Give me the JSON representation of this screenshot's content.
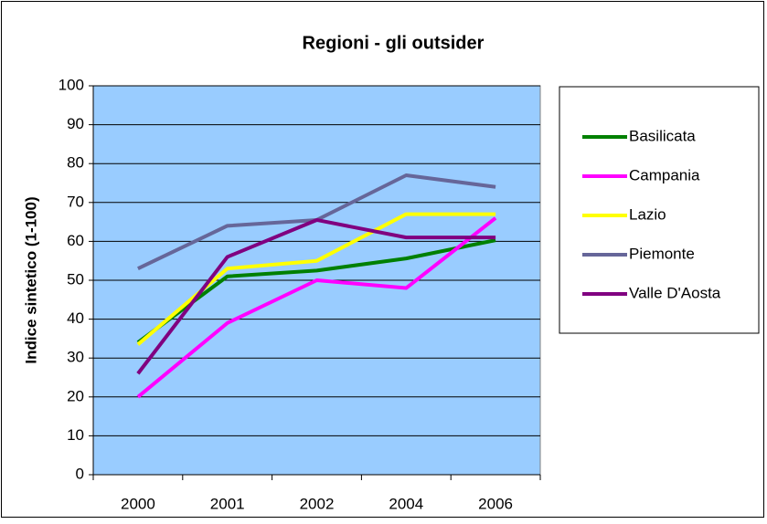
{
  "chart_data": {
    "type": "line",
    "title": "Regioni - gli outsider",
    "y_label": "Indice sintetico (1-100)",
    "categories": [
      "2000",
      "2001",
      "2002",
      "2004",
      "2006"
    ],
    "series": [
      {
        "name": "Basilicata",
        "color": "#008000",
        "values": [
          34,
          51,
          52.5,
          55.6,
          60.3
        ]
      },
      {
        "name": "Campania",
        "color": "#ff00ff",
        "values": [
          20,
          39,
          50,
          48,
          66
        ]
      },
      {
        "name": "Lazio",
        "color": "#ffff00",
        "values": [
          33.5,
          53,
          55,
          67,
          67
        ]
      },
      {
        "name": "Piemonte",
        "color": "#666699",
        "values": [
          53,
          64,
          65.5,
          77,
          74
        ]
      },
      {
        "name": "Valle D'Aosta",
        "color": "#800080",
        "values": [
          26,
          56,
          65.5,
          61,
          61
        ]
      }
    ],
    "ylim": [
      0,
      100
    ],
    "yticks": [
      0,
      10,
      20,
      30,
      40,
      50,
      60,
      70,
      80,
      90,
      100
    ],
    "grid": true,
    "legend": "right",
    "plot_background": "#99ccff"
  }
}
